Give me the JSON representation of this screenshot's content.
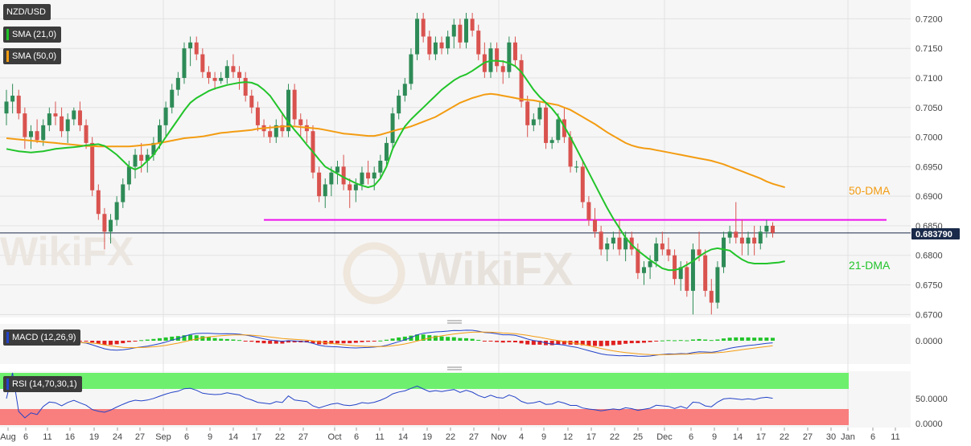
{
  "chart_data": {
    "type": "candlestick",
    "symbol": "NZD/USD",
    "current_price": "0.683790",
    "indicators": {
      "sma21_label": "SMA (21,0)",
      "sma50_label": "SMA (50,0)",
      "macd_label": "MACD (12,26,9)",
      "rsi_label": "RSI (14,70,30,1)"
    },
    "annotations": {
      "dma50": "50-DMA",
      "dma21": "21-DMA"
    },
    "resistance_level": 0.686,
    "main_yaxis": {
      "range": [
        0.6695,
        0.7225
      ],
      "ticks": [
        "0.7200",
        "0.7150",
        "0.7100",
        "0.7050",
        "0.7000",
        "0.6950",
        "0.6900",
        "0.6850",
        "0.6800",
        "0.6750",
        "0.6700"
      ]
    },
    "macd_yaxis": {
      "ticks": [
        "0.0000"
      ]
    },
    "rsi_yaxis": {
      "ticks": [
        "50.0000",
        "0.0000"
      ]
    },
    "x_ticks": [
      "Aug",
      "6",
      "11",
      "16",
      "19",
      "24",
      "27",
      "Sep",
      "6",
      "9",
      "14",
      "17",
      "22",
      "27",
      "Oct",
      "6",
      "11",
      "14",
      "19",
      "22",
      "27",
      "Nov",
      "4",
      "9",
      "12",
      "17",
      "22",
      "25",
      "Dec",
      "6",
      "9",
      "14",
      "17",
      "22",
      "27",
      "30",
      "Jan",
      "6",
      "11"
    ],
    "ohlc": [
      [
        0.704,
        0.708,
        0.702,
        0.706
      ],
      [
        0.706,
        0.709,
        0.704,
        0.707
      ],
      [
        0.707,
        0.708,
        0.703,
        0.704
      ],
      [
        0.704,
        0.705,
        0.698,
        0.7
      ],
      [
        0.7,
        0.702,
        0.698,
        0.701
      ],
      [
        0.701,
        0.703,
        0.699,
        0.6995
      ],
      [
        0.6995,
        0.703,
        0.6985,
        0.702
      ],
      [
        0.702,
        0.705,
        0.701,
        0.704
      ],
      [
        0.704,
        0.706,
        0.702,
        0.7035
      ],
      [
        0.7035,
        0.705,
        0.7,
        0.701
      ],
      [
        0.701,
        0.704,
        0.699,
        0.703
      ],
      [
        0.703,
        0.705,
        0.702,
        0.7045
      ],
      [
        0.7045,
        0.706,
        0.701,
        0.702
      ],
      [
        0.702,
        0.703,
        0.698,
        0.699
      ],
      [
        0.699,
        0.7,
        0.69,
        0.691
      ],
      [
        0.691,
        0.692,
        0.686,
        0.687
      ],
      [
        0.687,
        0.688,
        0.681,
        0.684
      ],
      [
        0.684,
        0.687,
        0.682,
        0.686
      ],
      [
        0.686,
        0.69,
        0.685,
        0.689
      ],
      [
        0.689,
        0.693,
        0.688,
        0.692
      ],
      [
        0.692,
        0.696,
        0.691,
        0.695
      ],
      [
        0.695,
        0.698,
        0.693,
        0.697
      ],
      [
        0.697,
        0.699,
        0.694,
        0.696
      ],
      [
        0.696,
        0.698,
        0.694,
        0.697
      ],
      [
        0.697,
        0.7,
        0.696,
        0.699
      ],
      [
        0.699,
        0.703,
        0.698,
        0.702
      ],
      [
        0.702,
        0.706,
        0.7,
        0.705
      ],
      [
        0.705,
        0.709,
        0.704,
        0.708
      ],
      [
        0.708,
        0.711,
        0.707,
        0.71
      ],
      [
        0.71,
        0.716,
        0.709,
        0.715
      ],
      [
        0.715,
        0.717,
        0.712,
        0.716
      ],
      [
        0.716,
        0.717,
        0.713,
        0.714
      ],
      [
        0.714,
        0.715,
        0.71,
        0.711
      ],
      [
        0.711,
        0.712,
        0.709,
        0.71
      ],
      [
        0.71,
        0.711,
        0.708,
        0.7095
      ],
      [
        0.7095,
        0.711,
        0.709,
        0.71
      ],
      [
        0.71,
        0.713,
        0.709,
        0.712
      ],
      [
        0.712,
        0.714,
        0.71,
        0.711
      ],
      [
        0.711,
        0.712,
        0.708,
        0.71
      ],
      [
        0.71,
        0.711,
        0.706,
        0.707
      ],
      [
        0.707,
        0.708,
        0.704,
        0.705
      ],
      [
        0.705,
        0.706,
        0.701,
        0.702
      ],
      [
        0.702,
        0.703,
        0.7,
        0.701
      ],
      [
        0.701,
        0.702,
        0.699,
        0.7
      ],
      [
        0.7,
        0.703,
        0.699,
        0.702
      ],
      [
        0.702,
        0.704,
        0.7,
        0.701
      ],
      [
        0.701,
        0.709,
        0.7,
        0.708
      ],
      [
        0.708,
        0.709,
        0.702,
        0.703
      ],
      [
        0.703,
        0.704,
        0.7,
        0.702
      ],
      [
        0.702,
        0.703,
        0.699,
        0.701
      ],
      [
        0.701,
        0.702,
        0.693,
        0.694
      ],
      [
        0.694,
        0.695,
        0.689,
        0.69
      ],
      [
        0.69,
        0.693,
        0.688,
        0.692
      ],
      [
        0.692,
        0.695,
        0.69,
        0.694
      ],
      [
        0.694,
        0.696,
        0.692,
        0.695
      ],
      [
        0.695,
        0.697,
        0.691,
        0.692
      ],
      [
        0.692,
        0.693,
        0.688,
        0.691
      ],
      [
        0.691,
        0.693,
        0.689,
        0.692
      ],
      [
        0.692,
        0.695,
        0.691,
        0.694
      ],
      [
        0.694,
        0.696,
        0.692,
        0.693
      ],
      [
        0.693,
        0.695,
        0.691,
        0.694
      ],
      [
        0.694,
        0.697,
        0.693,
        0.696
      ],
      [
        0.696,
        0.7,
        0.695,
        0.699
      ],
      [
        0.699,
        0.705,
        0.698,
        0.704
      ],
      [
        0.704,
        0.708,
        0.703,
        0.707
      ],
      [
        0.707,
        0.71,
        0.706,
        0.709
      ],
      [
        0.709,
        0.715,
        0.708,
        0.714
      ],
      [
        0.714,
        0.721,
        0.713,
        0.72
      ],
      [
        0.72,
        0.721,
        0.716,
        0.717
      ],
      [
        0.717,
        0.718,
        0.713,
        0.714
      ],
      [
        0.714,
        0.717,
        0.713,
        0.716
      ],
      [
        0.716,
        0.717,
        0.714,
        0.715
      ],
      [
        0.715,
        0.718,
        0.714,
        0.717
      ],
      [
        0.717,
        0.72,
        0.715,
        0.719
      ],
      [
        0.719,
        0.72,
        0.715,
        0.716
      ],
      [
        0.716,
        0.721,
        0.715,
        0.72
      ],
      [
        0.72,
        0.721,
        0.717,
        0.718
      ],
      [
        0.718,
        0.719,
        0.713,
        0.714
      ],
      [
        0.714,
        0.716,
        0.71,
        0.711
      ],
      [
        0.711,
        0.716,
        0.71,
        0.715
      ],
      [
        0.715,
        0.716,
        0.711,
        0.712
      ],
      [
        0.712,
        0.713,
        0.709,
        0.711
      ],
      [
        0.711,
        0.717,
        0.71,
        0.716
      ],
      [
        0.716,
        0.717,
        0.712,
        0.713
      ],
      [
        0.713,
        0.714,
        0.705,
        0.706
      ],
      [
        0.706,
        0.707,
        0.7,
        0.702
      ],
      [
        0.702,
        0.704,
        0.701,
        0.703
      ],
      [
        0.703,
        0.706,
        0.702,
        0.705
      ],
      [
        0.705,
        0.706,
        0.698,
        0.699
      ],
      [
        0.699,
        0.7,
        0.698,
        0.6995
      ],
      [
        0.6995,
        0.704,
        0.699,
        0.703
      ],
      [
        0.703,
        0.705,
        0.699,
        0.7
      ],
      [
        0.7,
        0.701,
        0.694,
        0.695
      ],
      [
        0.695,
        0.696,
        0.694,
        0.695
      ],
      [
        0.695,
        0.696,
        0.688,
        0.689
      ],
      [
        0.689,
        0.69,
        0.685,
        0.686
      ],
      [
        0.686,
        0.688,
        0.683,
        0.684
      ],
      [
        0.684,
        0.685,
        0.68,
        0.681
      ],
      [
        0.681,
        0.683,
        0.679,
        0.682
      ],
      [
        0.682,
        0.684,
        0.681,
        0.683
      ],
      [
        0.683,
        0.686,
        0.68,
        0.681
      ],
      [
        0.681,
        0.684,
        0.679,
        0.683
      ],
      [
        0.683,
        0.684,
        0.68,
        0.681
      ],
      [
        0.681,
        0.682,
        0.676,
        0.677
      ],
      [
        0.677,
        0.679,
        0.675,
        0.678
      ],
      [
        0.678,
        0.68,
        0.676,
        0.679
      ],
      [
        0.679,
        0.683,
        0.678,
        0.682
      ],
      [
        0.682,
        0.684,
        0.68,
        0.681
      ],
      [
        0.681,
        0.683,
        0.679,
        0.68
      ],
      [
        0.68,
        0.681,
        0.675,
        0.676
      ],
      [
        0.676,
        0.679,
        0.674,
        0.678
      ],
      [
        0.678,
        0.679,
        0.673,
        0.674
      ],
      [
        0.674,
        0.682,
        0.67,
        0.681
      ],
      [
        0.681,
        0.684,
        0.679,
        0.68
      ],
      [
        0.68,
        0.681,
        0.673,
        0.674
      ],
      [
        0.674,
        0.676,
        0.67,
        0.672
      ],
      [
        0.672,
        0.679,
        0.671,
        0.678
      ],
      [
        0.678,
        0.684,
        0.677,
        0.683
      ],
      [
        0.683,
        0.685,
        0.682,
        0.684
      ],
      [
        0.684,
        0.689,
        0.682,
        0.683
      ],
      [
        0.683,
        0.686,
        0.68,
        0.682
      ],
      [
        0.682,
        0.684,
        0.68,
        0.683
      ],
      [
        0.683,
        0.685,
        0.68,
        0.682
      ],
      [
        0.682,
        0.685,
        0.681,
        0.684
      ],
      [
        0.684,
        0.686,
        0.683,
        0.685
      ],
      [
        0.685,
        0.6856,
        0.683,
        0.6838
      ]
    ],
    "sma21": [
      0.698,
      0.6978,
      0.6976,
      0.6975,
      0.6974,
      0.6975,
      0.6976,
      0.6978,
      0.698,
      0.6981,
      0.6982,
      0.6983,
      0.6984,
      0.6986,
      0.6987,
      0.6988,
      0.6985,
      0.6978,
      0.697,
      0.696,
      0.695,
      0.6945,
      0.695,
      0.696,
      0.697,
      0.6985,
      0.7,
      0.7015,
      0.703,
      0.7045,
      0.7058,
      0.7066,
      0.7072,
      0.7078,
      0.7082,
      0.7085,
      0.7088,
      0.709,
      0.7092,
      0.7093,
      0.7092,
      0.7088,
      0.708,
      0.707,
      0.7055,
      0.704,
      0.7025,
      0.7012,
      0.7,
      0.6987,
      0.6975,
      0.6962,
      0.695,
      0.6944,
      0.6938,
      0.6932,
      0.6927,
      0.6922,
      0.6918,
      0.6915,
      0.6918,
      0.693,
      0.695,
      0.698,
      0.7,
      0.7018,
      0.703,
      0.704,
      0.705,
      0.706,
      0.707,
      0.708,
      0.7088,
      0.7096,
      0.7102,
      0.7106,
      0.7112,
      0.7119,
      0.7126,
      0.7129,
      0.7129,
      0.7128,
      0.7125,
      0.712,
      0.711,
      0.7095,
      0.708,
      0.7068,
      0.7058,
      0.7048,
      0.7035,
      0.7018,
      0.7,
      0.698,
      0.696,
      0.694,
      0.692,
      0.69,
      0.688,
      0.6862,
      0.6846,
      0.683,
      0.6818,
      0.6808,
      0.68,
      0.6792,
      0.6785,
      0.6778,
      0.6775,
      0.6775,
      0.6778,
      0.6784,
      0.679,
      0.6798,
      0.6805,
      0.681,
      0.6812,
      0.681,
      0.6808,
      0.68,
      0.6793,
      0.6788,
      0.6786,
      0.6786,
      0.6786,
      0.6787,
      0.6788,
      0.679
    ],
    "sma50": [
      0.6998,
      0.6997,
      0.6996,
      0.6995,
      0.6994,
      0.6993,
      0.6992,
      0.6991,
      0.699,
      0.6989,
      0.6988,
      0.6987,
      0.6986,
      0.6985,
      0.6985,
      0.6984,
      0.6984,
      0.6984,
      0.6984,
      0.6984,
      0.6984,
      0.6985,
      0.6986,
      0.6987,
      0.6988,
      0.699,
      0.6992,
      0.6994,
      0.6996,
      0.6998,
      0.6999,
      0.7,
      0.7001,
      0.7003,
      0.7005,
      0.7007,
      0.7008,
      0.7009,
      0.701,
      0.7011,
      0.7012,
      0.7014,
      0.7015,
      0.7016,
      0.7017,
      0.7018,
      0.7018,
      0.7018,
      0.7017,
      0.7016,
      0.7015,
      0.7014,
      0.7012,
      0.701,
      0.7008,
      0.7006,
      0.7005,
      0.7004,
      0.7003,
      0.7002,
      0.7002,
      0.7004,
      0.7007,
      0.701,
      0.7013,
      0.7015,
      0.7018,
      0.7022,
      0.7026,
      0.703,
      0.7034,
      0.704,
      0.7046,
      0.7052,
      0.7058,
      0.7062,
      0.7066,
      0.7069,
      0.7072,
      0.7073,
      0.7072,
      0.707,
      0.7068,
      0.7066,
      0.7064,
      0.7063,
      0.7062,
      0.706,
      0.7058,
      0.7056,
      0.7054,
      0.705,
      0.7046,
      0.704,
      0.7034,
      0.7028,
      0.7022,
      0.7015,
      0.7008,
      0.7002,
      0.6996,
      0.699,
      0.6986,
      0.6983,
      0.6981,
      0.698,
      0.6978,
      0.6976,
      0.6974,
      0.6972,
      0.697,
      0.6968,
      0.6966,
      0.6964,
      0.6962,
      0.696,
      0.6957,
      0.6954,
      0.695,
      0.6946,
      0.6942,
      0.6938,
      0.6934,
      0.693,
      0.6925,
      0.6921,
      0.6918,
      0.6915
    ]
  }
}
